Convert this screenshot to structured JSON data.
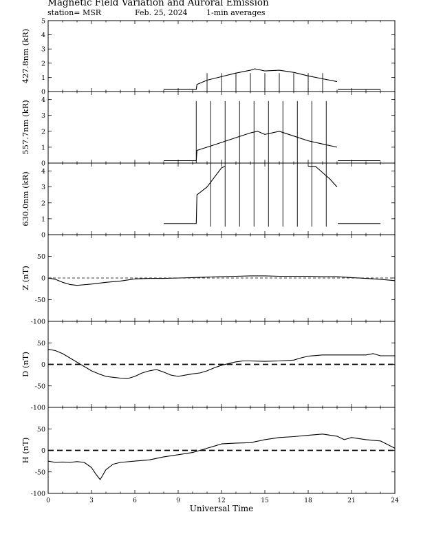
{
  "header": {
    "title": "Magnetic Field Variation and Auroral Emission",
    "station": "station= MSR",
    "date": "Feb. 25, 2024",
    "averaging": "1-min averages"
  },
  "chart_data": [
    {
      "type": "line",
      "ylabel": "427.8nm (kR)",
      "ylim": [
        0,
        5
      ],
      "yticks": [
        "0",
        "1",
        "2",
        "3",
        "4",
        "5"
      ],
      "xlim": [
        0,
        24
      ],
      "series": [
        {
          "x": [
            8,
            10.25,
            10.3,
            11,
            12,
            13,
            14,
            14.3,
            15,
            16,
            17,
            18,
            19,
            20
          ],
          "values": [
            0.15,
            0.15,
            0.5,
            0.8,
            1.05,
            1.3,
            1.5,
            1.6,
            1.45,
            1.5,
            1.35,
            1.1,
            0.9,
            0.7
          ]
        },
        {
          "x": [
            20.05,
            23
          ],
          "values": [
            0.15,
            0.15
          ]
        }
      ],
      "spikes_at": [
        11,
        12,
        13,
        14,
        15,
        16,
        17,
        18,
        19
      ],
      "spike_range": [
        0.05,
        1.3
      ]
    },
    {
      "type": "line",
      "ylabel": "557.7nm (kR)",
      "ylim": [
        0,
        4.5
      ],
      "yticks": [
        "0",
        "1",
        "2",
        "3",
        "4"
      ],
      "xlim": [
        0,
        24
      ],
      "series": [
        {
          "x": [
            8,
            10.25,
            10.3,
            11,
            12,
            13,
            14,
            14.5,
            15,
            16,
            17,
            18,
            19,
            20
          ],
          "values": [
            0.15,
            0.15,
            0.8,
            1.0,
            1.3,
            1.6,
            1.9,
            2.0,
            1.8,
            2.0,
            1.7,
            1.4,
            1.2,
            1.0
          ]
        },
        {
          "x": [
            20.05,
            23
          ],
          "values": [
            0.15,
            0.15
          ]
        }
      ],
      "spikes_at": [
        10.25,
        11.25,
        12.25,
        13.25,
        14.25,
        15.25,
        16.25,
        17.25,
        18.25,
        19.25
      ],
      "spike_range": [
        0,
        3.9
      ]
    },
    {
      "type": "line",
      "ylabel": "630.0nm (kR)",
      "ylim": [
        0,
        4.5
      ],
      "yticks": [
        "0",
        "1",
        "2",
        "3",
        "4"
      ],
      "xlim": [
        0,
        24
      ],
      "series": [
        {
          "x": [
            8,
            10.25,
            10.3,
            11,
            11.5,
            12,
            12.25
          ],
          "values": [
            0.7,
            0.7,
            2.5,
            3.0,
            3.6,
            4.2,
            4.3
          ]
        },
        {
          "x": [
            18,
            18.5,
            19,
            19.5,
            20
          ],
          "values": [
            4.3,
            4.3,
            3.9,
            3.5,
            3.0
          ]
        },
        {
          "x": [
            20.05,
            23
          ],
          "values": [
            0.7,
            0.7
          ]
        }
      ],
      "spikes_at": [
        11.25,
        12.25,
        13.25,
        14.25,
        15.25,
        16.25,
        17.25,
        18.25,
        19.25
      ],
      "spike_range": [
        0.5,
        4.5
      ]
    },
    {
      "type": "line",
      "ylabel": "Z (nT)",
      "ylim": [
        -100,
        100
      ],
      "yticks": [
        "-100",
        "-50",
        "0",
        "50"
      ],
      "xlim": [
        0,
        24
      ],
      "zero_style": "thin-dashed",
      "series": [
        {
          "x": [
            0,
            0.5,
            1,
            1.5,
            2,
            3,
            4,
            5,
            6,
            7,
            8,
            9,
            10,
            11,
            12,
            13,
            14,
            15,
            16,
            17,
            18,
            19,
            20,
            21,
            22,
            23,
            24
          ],
          "values": [
            0,
            -3,
            -10,
            -15,
            -17,
            -14,
            -10,
            -7,
            -2,
            -1,
            -1,
            0,
            1,
            2,
            3,
            4,
            5,
            5,
            4,
            4,
            4,
            3,
            3,
            1,
            -1,
            -3,
            -6
          ]
        }
      ]
    },
    {
      "type": "line",
      "ylabel": "D (nT)",
      "ylim": [
        -100,
        100
      ],
      "yticks": [
        "-100",
        "-50",
        "0",
        "50"
      ],
      "xlim": [
        0,
        24
      ],
      "zero_style": "bold-dashed",
      "series": [
        {
          "x": [
            0,
            0.5,
            1,
            1.5,
            2,
            2.5,
            3,
            3.5,
            4,
            4.5,
            5,
            5.5,
            6,
            6.5,
            7,
            7.5,
            8,
            8.5,
            9,
            9.5,
            10,
            10.5,
            11,
            11.5,
            12,
            12.5,
            13,
            13.5,
            14,
            15,
            16,
            17,
            17.5,
            18,
            19,
            20,
            21,
            22,
            22.5,
            23,
            24
          ],
          "values": [
            35,
            32,
            25,
            15,
            5,
            -5,
            -15,
            -22,
            -28,
            -30,
            -32,
            -33,
            -28,
            -20,
            -15,
            -12,
            -18,
            -25,
            -28,
            -25,
            -22,
            -20,
            -15,
            -8,
            -2,
            2,
            6,
            8,
            8,
            7,
            8,
            10,
            15,
            19,
            22,
            22,
            22,
            22,
            25,
            20,
            20
          ]
        }
      ]
    },
    {
      "type": "line",
      "ylabel": "H (nT)",
      "ylim": [
        -100,
        100
      ],
      "yticks": [
        "-100",
        "-50",
        "0",
        "50"
      ],
      "xlim": [
        0,
        24
      ],
      "xticks": [
        "0",
        "3",
        "6",
        "9",
        "12",
        "15",
        "18",
        "21",
        "24"
      ],
      "xlabel": "Universal Time",
      "zero_style": "bold-dashed",
      "series": [
        {
          "x": [
            0,
            0.5,
            1,
            1.5,
            2,
            2.5,
            3,
            3.3,
            3.6,
            4,
            4.5,
            5,
            6,
            7,
            8,
            9,
            10,
            10.5,
            11,
            11.5,
            12,
            13,
            14,
            15,
            16,
            17,
            18,
            19,
            20,
            20.5,
            21,
            22,
            23,
            24
          ],
          "values": [
            -25,
            -28,
            -27,
            -28,
            -26,
            -28,
            -40,
            -55,
            -68,
            -45,
            -32,
            -28,
            -25,
            -22,
            -15,
            -10,
            -5,
            0,
            5,
            10,
            15,
            17,
            18,
            25,
            30,
            32,
            35,
            38,
            33,
            25,
            30,
            25,
            22,
            5
          ]
        }
      ]
    }
  ]
}
